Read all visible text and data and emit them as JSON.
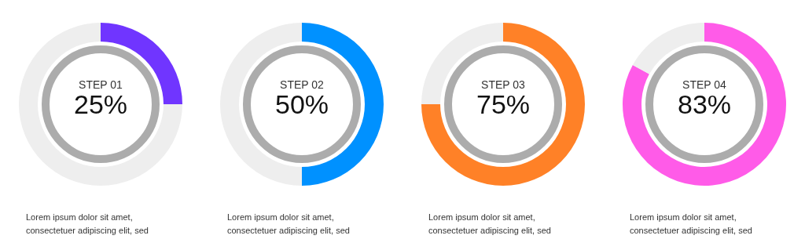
{
  "chart_data": [
    {
      "type": "donut",
      "title": "STEP 01",
      "categories": [
        null,
        null
      ],
      "values": [
        25,
        75
      ],
      "colors": [
        "#7035ff",
        "#eeeeee"
      ],
      "annotations": [
        "25%",
        "Lorem ipsum dolor sit amet, consectetuer adipiscing elit, sed"
      ]
    },
    {
      "type": "donut",
      "title": "STEP 02",
      "categories": [
        null,
        null
      ],
      "values": [
        50,
        50
      ],
      "colors": [
        "#0091ff",
        "#eeeeee"
      ],
      "annotations": [
        "50%",
        "Lorem ipsum dolor sit amet, consectetuer adipiscing elit, sed"
      ]
    },
    {
      "type": "donut",
      "title": "STEP 03",
      "categories": [
        null,
        null
      ],
      "values": [
        75,
        25
      ],
      "colors": [
        "#ff8127",
        "#eeeeee"
      ],
      "annotations": [
        "75%",
        "Lorem ipsum dolor sit amet, consectetuer adipiscing elit, sed"
      ]
    },
    {
      "type": "donut",
      "title": "STEP 04",
      "categories": [
        null,
        null
      ],
      "values": [
        83,
        17
      ],
      "colors": [
        "#ff5be8",
        "#eeeeee"
      ],
      "annotations": [
        "83%",
        "Lorem ipsum dolor sit amet, consectetuer adipiscing elit, sed"
      ]
    }
  ]
}
